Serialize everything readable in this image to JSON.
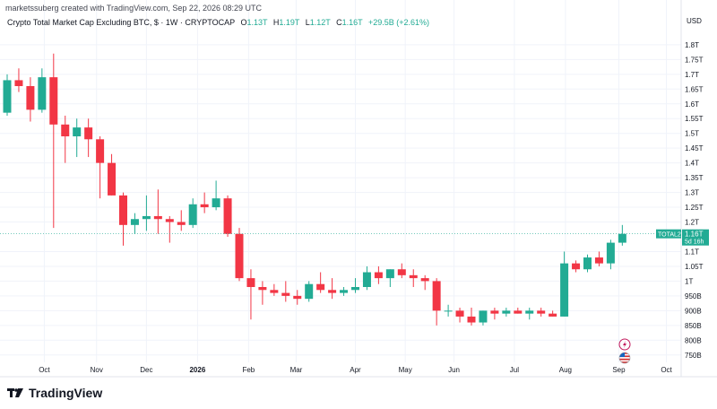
{
  "header": {
    "text": "marketssuberg created with TradingView.com, Sep 22, 2026 08:29 UTC"
  },
  "legend": {
    "title": "Crypto Total Market Cap Excluding BTC, $ · 1W · CRYPTOCAP",
    "open_label": "O",
    "open": "1.13T",
    "high_label": "H",
    "high": "1.19T",
    "low_label": "L",
    "low": "1.12T",
    "close_label": "C",
    "close": "1.16T",
    "change": "+29.5B (+2.61%)"
  },
  "currency": "USD",
  "price_tag": {
    "symbol": "TOTAL2",
    "value": "1.16T",
    "countdown": "5d 16h"
  },
  "brand": "TradingView",
  "colors": {
    "up": "#22ab94",
    "down": "#f23645",
    "grid": "#f0f3fa",
    "text": "#131722",
    "last_line": "#22ab94"
  },
  "icons": [
    "tradingview-logo-icon",
    "lightning-icon",
    "us-flag-icon"
  ],
  "chart_data": {
    "type": "candlestick",
    "interval": "1W",
    "y_unit": "T (USD)",
    "ylim": [
      0.725,
      1.83
    ],
    "y_ticks": [
      {
        "v": 1.8,
        "label": "1.8T"
      },
      {
        "v": 1.75,
        "label": "1.75T"
      },
      {
        "v": 1.7,
        "label": "1.7T"
      },
      {
        "v": 1.65,
        "label": "1.65T"
      },
      {
        "v": 1.6,
        "label": "1.6T"
      },
      {
        "v": 1.55,
        "label": "1.55T"
      },
      {
        "v": 1.5,
        "label": "1.5T"
      },
      {
        "v": 1.45,
        "label": "1.45T"
      },
      {
        "v": 1.4,
        "label": "1.4T"
      },
      {
        "v": 1.35,
        "label": "1.35T"
      },
      {
        "v": 1.3,
        "label": "1.3T"
      },
      {
        "v": 1.25,
        "label": "1.25T"
      },
      {
        "v": 1.2,
        "label": "1.2T"
      },
      {
        "v": 1.1,
        "label": "1.1T"
      },
      {
        "v": 1.05,
        "label": "1.05T"
      },
      {
        "v": 1.0,
        "label": "1T"
      },
      {
        "v": 0.95,
        "label": "950B"
      },
      {
        "v": 0.9,
        "label": "900B"
      },
      {
        "v": 0.85,
        "label": "850B"
      },
      {
        "v": 0.8,
        "label": "800B"
      },
      {
        "v": 0.75,
        "label": "750B"
      }
    ],
    "x_ticks": [
      {
        "i": 3.2,
        "label": "Oct",
        "bold": false
      },
      {
        "i": 7.7,
        "label": "Nov",
        "bold": false
      },
      {
        "i": 12,
        "label": "Dec",
        "bold": false
      },
      {
        "i": 16.4,
        "label": "2026",
        "bold": true
      },
      {
        "i": 20.8,
        "label": "Feb",
        "bold": false
      },
      {
        "i": 24.9,
        "label": "Mar",
        "bold": false
      },
      {
        "i": 30,
        "label": "Apr",
        "bold": false
      },
      {
        "i": 34.3,
        "label": "May",
        "bold": false
      },
      {
        "i": 38.5,
        "label": "Jun",
        "bold": false
      },
      {
        "i": 43.7,
        "label": "Jul",
        "bold": false
      },
      {
        "i": 48.1,
        "label": "Aug",
        "bold": false
      },
      {
        "i": 52.7,
        "label": "Sep",
        "bold": false
      },
      {
        "i": 56.8,
        "label": "Oct",
        "bold": false
      }
    ],
    "candles": [
      {
        "o": 1.57,
        "h": 1.7,
        "l": 1.56,
        "c": 1.68
      },
      {
        "o": 1.68,
        "h": 1.72,
        "l": 1.64,
        "c": 1.66
      },
      {
        "o": 1.66,
        "h": 1.69,
        "l": 1.54,
        "c": 1.58
      },
      {
        "o": 1.58,
        "h": 1.72,
        "l": 1.57,
        "c": 1.69
      },
      {
        "o": 1.69,
        "h": 1.77,
        "l": 1.18,
        "c": 1.53
      },
      {
        "o": 1.53,
        "h": 1.56,
        "l": 1.4,
        "c": 1.49
      },
      {
        "o": 1.49,
        "h": 1.55,
        "l": 1.42,
        "c": 1.52
      },
      {
        "o": 1.52,
        "h": 1.55,
        "l": 1.42,
        "c": 1.48
      },
      {
        "o": 1.48,
        "h": 1.49,
        "l": 1.28,
        "c": 1.4
      },
      {
        "o": 1.4,
        "h": 1.43,
        "l": 1.29,
        "c": 1.29
      },
      {
        "o": 1.29,
        "h": 1.3,
        "l": 1.12,
        "c": 1.19
      },
      {
        "o": 1.19,
        "h": 1.23,
        "l": 1.16,
        "c": 1.21
      },
      {
        "o": 1.21,
        "h": 1.29,
        "l": 1.17,
        "c": 1.22
      },
      {
        "o": 1.22,
        "h": 1.31,
        "l": 1.16,
        "c": 1.21
      },
      {
        "o": 1.21,
        "h": 1.22,
        "l": 1.13,
        "c": 1.2
      },
      {
        "o": 1.2,
        "h": 1.24,
        "l": 1.17,
        "c": 1.19
      },
      {
        "o": 1.19,
        "h": 1.28,
        "l": 1.18,
        "c": 1.26
      },
      {
        "o": 1.26,
        "h": 1.3,
        "l": 1.23,
        "c": 1.25
      },
      {
        "o": 1.25,
        "h": 1.34,
        "l": 1.24,
        "c": 1.28
      },
      {
        "o": 1.28,
        "h": 1.29,
        "l": 1.15,
        "c": 1.16
      },
      {
        "o": 1.16,
        "h": 1.18,
        "l": 1.0,
        "c": 1.01
      },
      {
        "o": 1.01,
        "h": 1.04,
        "l": 0.87,
        "c": 0.98
      },
      {
        "o": 0.98,
        "h": 1.0,
        "l": 0.92,
        "c": 0.97
      },
      {
        "o": 0.97,
        "h": 0.99,
        "l": 0.95,
        "c": 0.96
      },
      {
        "o": 0.96,
        "h": 1.0,
        "l": 0.93,
        "c": 0.95
      },
      {
        "o": 0.95,
        "h": 0.97,
        "l": 0.92,
        "c": 0.94
      },
      {
        "o": 0.94,
        "h": 1.0,
        "l": 0.93,
        "c": 0.99
      },
      {
        "o": 0.99,
        "h": 1.03,
        "l": 0.96,
        "c": 0.97
      },
      {
        "o": 0.97,
        "h": 1.01,
        "l": 0.94,
        "c": 0.96
      },
      {
        "o": 0.96,
        "h": 0.98,
        "l": 0.95,
        "c": 0.97
      },
      {
        "o": 0.97,
        "h": 1.01,
        "l": 0.96,
        "c": 0.98
      },
      {
        "o": 0.98,
        "h": 1.05,
        "l": 0.97,
        "c": 1.03
      },
      {
        "o": 1.03,
        "h": 1.05,
        "l": 0.99,
        "c": 1.01
      },
      {
        "o": 1.01,
        "h": 1.04,
        "l": 0.98,
        "c": 1.04
      },
      {
        "o": 1.04,
        "h": 1.06,
        "l": 1.01,
        "c": 1.02
      },
      {
        "o": 1.02,
        "h": 1.04,
        "l": 0.98,
        "c": 1.01
      },
      {
        "o": 1.01,
        "h": 1.02,
        "l": 0.97,
        "c": 1.0
      },
      {
        "o": 1.0,
        "h": 1.01,
        "l": 0.85,
        "c": 0.9
      },
      {
        "o": 0.9,
        "h": 0.92,
        "l": 0.88,
        "c": 0.9
      },
      {
        "o": 0.9,
        "h": 0.91,
        "l": 0.86,
        "c": 0.88
      },
      {
        "o": 0.88,
        "h": 0.91,
        "l": 0.85,
        "c": 0.86
      },
      {
        "o": 0.86,
        "h": 0.9,
        "l": 0.85,
        "c": 0.9
      },
      {
        "o": 0.9,
        "h": 0.91,
        "l": 0.87,
        "c": 0.89
      },
      {
        "o": 0.89,
        "h": 0.91,
        "l": 0.88,
        "c": 0.9
      },
      {
        "o": 0.9,
        "h": 0.91,
        "l": 0.89,
        "c": 0.89
      },
      {
        "o": 0.89,
        "h": 0.91,
        "l": 0.87,
        "c": 0.9
      },
      {
        "o": 0.9,
        "h": 0.91,
        "l": 0.88,
        "c": 0.89
      },
      {
        "o": 0.89,
        "h": 0.9,
        "l": 0.88,
        "c": 0.88
      },
      {
        "o": 0.88,
        "h": 1.1,
        "l": 0.88,
        "c": 1.06
      },
      {
        "o": 1.06,
        "h": 1.07,
        "l": 1.03,
        "c": 1.04
      },
      {
        "o": 1.04,
        "h": 1.09,
        "l": 1.03,
        "c": 1.08
      },
      {
        "o": 1.08,
        "h": 1.1,
        "l": 1.05,
        "c": 1.06
      },
      {
        "o": 1.06,
        "h": 1.14,
        "l": 1.04,
        "c": 1.13
      },
      {
        "o": 1.13,
        "h": 1.19,
        "l": 1.12,
        "c": 1.16
      }
    ],
    "last_price": 1.16
  }
}
